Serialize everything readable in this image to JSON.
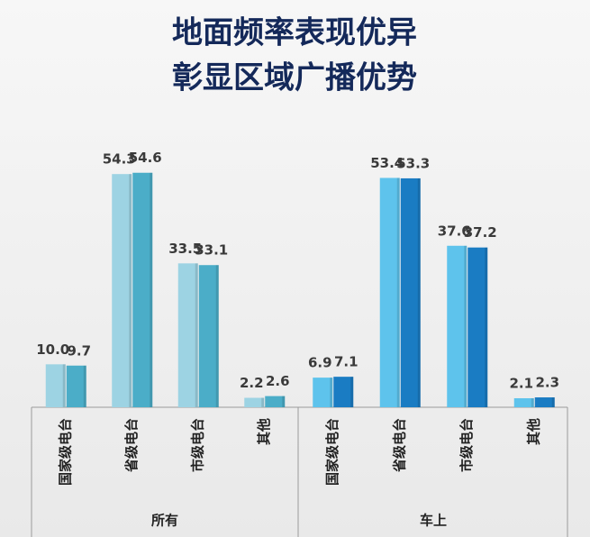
{
  "title": [
    "地面频率表现优异",
    "彰显区域广播优势"
  ],
  "chart_data": [
    {
      "type": "bar",
      "xlabel": "所有",
      "categories": [
        "国家级电台",
        "省级电台",
        "市级电台",
        "其他"
      ],
      "series": [
        {
          "color": "#9dd3e3",
          "values": [
            10.0,
            54.3,
            33.5,
            2.2
          ],
          "value_labels": [
            "10.0",
            "54.3",
            "33.5",
            "2.2"
          ]
        },
        {
          "color": "#4badc8",
          "values": [
            9.7,
            54.6,
            33.1,
            2.6
          ]
        }
      ],
      "ylim": [
        0,
        60
      ]
    },
    {
      "type": "bar",
      "xlabel": "车上",
      "categories": [
        "国家级电台",
        "省级电台",
        "市级电台",
        "其他"
      ],
      "series": [
        {
          "color": "#5ec3ec",
          "values": [
            6.9,
            53.4,
            37.6,
            2.1
          ]
        },
        {
          "color": "#1a7cc3",
          "values": [
            7.1,
            53.3,
            37.2,
            2.3
          ]
        }
      ],
      "ylim": [
        0,
        60
      ]
    }
  ]
}
